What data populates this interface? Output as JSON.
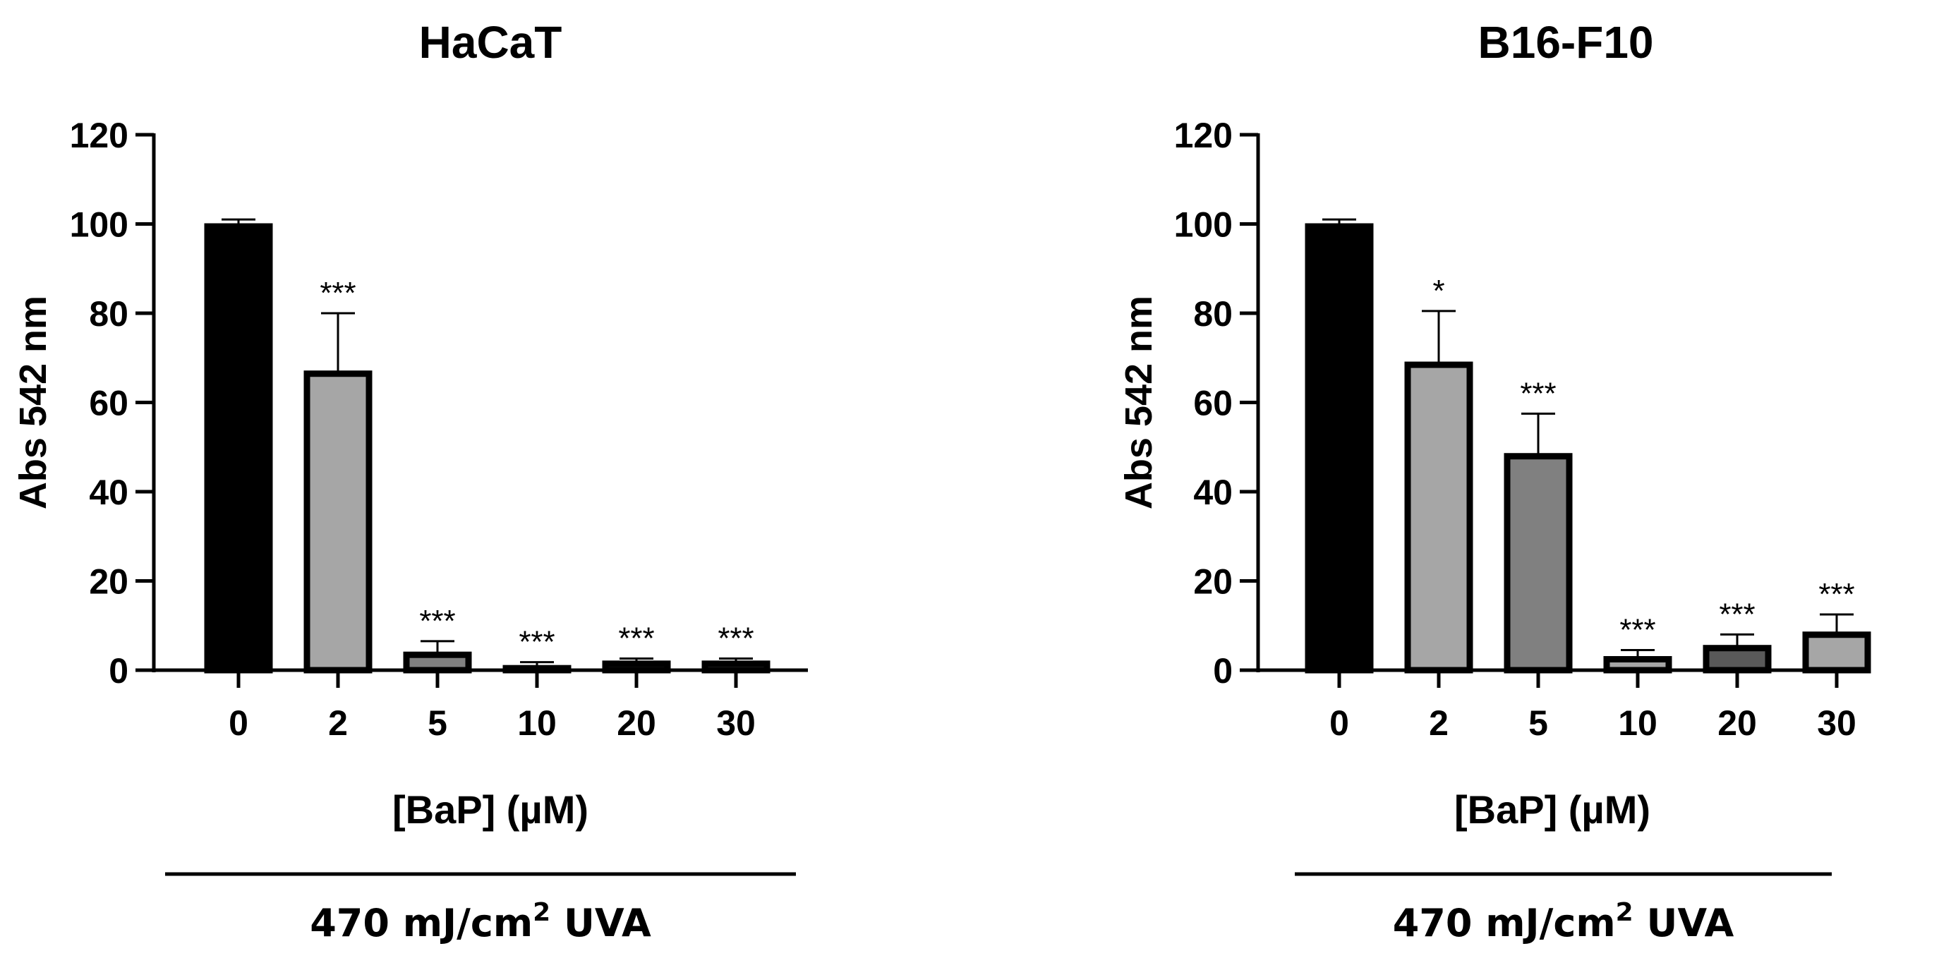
{
  "chart_data": [
    {
      "type": "bar",
      "title": "HaCaT",
      "categories": [
        "0",
        "2",
        "5",
        "10",
        "20",
        "30"
      ],
      "values": [
        100,
        67,
        4,
        1,
        2,
        2
      ],
      "errors": [
        1,
        13,
        2.5,
        0.8,
        0.6,
        0.6
      ],
      "significance": [
        "",
        "***",
        "***",
        "***",
        "***",
        "***"
      ],
      "bar_colors": [
        "#000000",
        "#a6a6a6",
        "#808080",
        "#595959",
        "#404040",
        "#a6a6a6"
      ],
      "ylabel": "Abs 542 nm",
      "ylim": [
        0,
        120
      ],
      "yticks": [
        0,
        20,
        40,
        60,
        80,
        100,
        120
      ],
      "xlabel": "[BaP] (µM)",
      "treatment_prefix": "470 mJ/cm",
      "treatment_sup": "2",
      "treatment_suffix": " UVA"
    },
    {
      "type": "bar",
      "title": "B16-F10",
      "categories": [
        "0",
        "2",
        "5",
        "10",
        "20",
        "30"
      ],
      "values": [
        100,
        69,
        48.5,
        3,
        5.5,
        8.5
      ],
      "errors": [
        1,
        11.5,
        9,
        1.5,
        2.5,
        4
      ],
      "significance": [
        "",
        "*",
        "***",
        "***",
        "***",
        "***"
      ],
      "bar_colors": [
        "#000000",
        "#a6a6a6",
        "#808080",
        "#a6a6a6",
        "#595959",
        "#a6a6a6"
      ],
      "ylabel": "Abs 542 nm",
      "ylim": [
        0,
        120
      ],
      "yticks": [
        0,
        20,
        40,
        60,
        80,
        100,
        120
      ],
      "xlabel": "[BaP] (µM)",
      "treatment_prefix": "470 mJ/cm",
      "treatment_sup": "2",
      "treatment_suffix": " UVA"
    }
  ]
}
